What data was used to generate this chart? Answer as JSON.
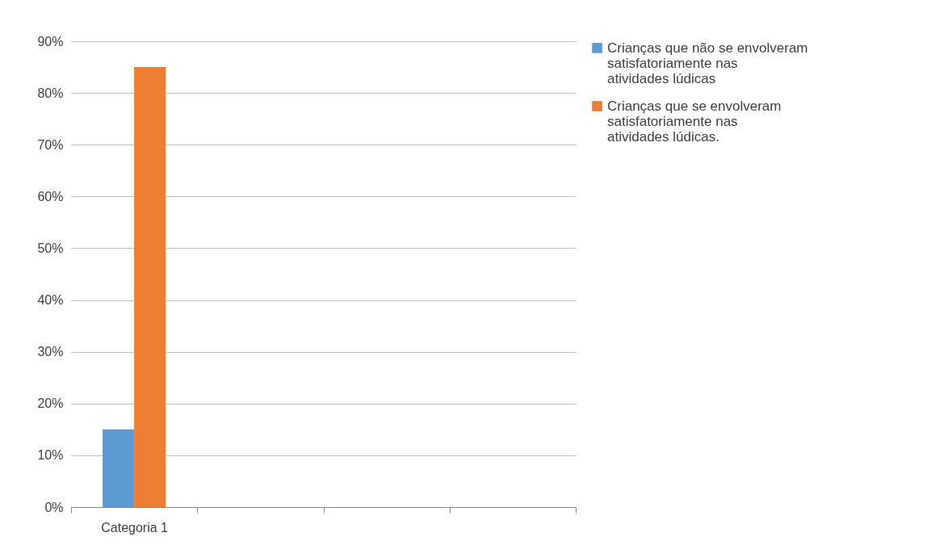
{
  "chart_data": {
    "type": "bar",
    "categories": [
      "Categoria 1",
      null,
      null,
      null
    ],
    "series": [
      {
        "name": "Crianças que não se envolveram satisfatoriamente nas atividades lúdicas",
        "color": "#5b9bd5",
        "values": [
          15,
          null,
          null,
          null
        ]
      },
      {
        "name": "Crianças que se envolveram satisfatoriamente nas atividades lúdicas.",
        "color": "#ed7d31",
        "values": [
          85,
          null,
          null,
          null
        ]
      }
    ],
    "ylim": [
      0,
      90
    ],
    "yticks": [
      {
        "value": 0,
        "label": "0%"
      },
      {
        "value": 10,
        "label": "10%"
      },
      {
        "value": 20,
        "label": "20%"
      },
      {
        "value": 30,
        "label": "30%"
      },
      {
        "value": 40,
        "label": "40%"
      },
      {
        "value": 50,
        "label": "50%"
      },
      {
        "value": 60,
        "label": "60%"
      },
      {
        "value": 70,
        "label": "70%"
      },
      {
        "value": 80,
        "label": "80%"
      },
      {
        "value": 90,
        "label": "90%"
      }
    ],
    "grid": "y",
    "legend": "right"
  }
}
